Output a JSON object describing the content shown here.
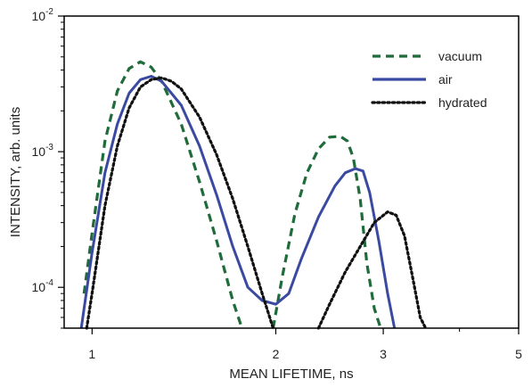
{
  "chart_data": {
    "type": "line",
    "title": "",
    "xlabel": "MEAN LIFETIME, ns",
    "ylabel": "INTENSITY, arb. units",
    "x_scale": "log",
    "y_scale": "log",
    "xlim": [
      0.9,
      5
    ],
    "ylim": [
      5e-05,
      0.01
    ],
    "x_ticks": [
      {
        "value": 1,
        "label": "1"
      },
      {
        "value": 2,
        "label": "2"
      },
      {
        "value": 3,
        "label": "3"
      },
      {
        "value": 5,
        "label": "5"
      }
    ],
    "y_ticks": [
      {
        "value": 0.0001,
        "base": "10",
        "exp": "-4"
      },
      {
        "value": 0.001,
        "base": "10",
        "exp": "-3"
      },
      {
        "value": 0.01,
        "base": "10",
        "exp": "-2"
      }
    ],
    "grid": false,
    "legend_position": "top-right",
    "series": [
      {
        "name": "vacuum",
        "color": "#1f6b3a",
        "style": "dashed",
        "x": [
          0.97,
          1.0,
          1.05,
          1.1,
          1.15,
          1.2,
          1.25,
          1.3,
          1.4,
          1.5,
          1.6,
          1.7,
          1.76,
          null,
          1.98,
          2.05,
          2.15,
          2.25,
          2.35,
          2.45,
          2.55,
          2.62,
          2.68,
          2.75,
          2.82,
          2.9,
          2.97
        ],
        "y": [
          9e-05,
          0.00025,
          0.0012,
          0.0028,
          0.0041,
          0.0046,
          0.0042,
          0.0033,
          0.0016,
          0.0006,
          0.00022,
          8e-05,
          5e-05,
          null,
          5e-05,
          0.00012,
          0.00035,
          0.0007,
          0.00105,
          0.00128,
          0.0013,
          0.0012,
          0.0009,
          0.00045,
          0.00015,
          7e-05,
          5e-05
        ]
      },
      {
        "name": "air",
        "color": "#3a4aa0",
        "style": "solid",
        "x": [
          0.96,
          1.0,
          1.05,
          1.1,
          1.15,
          1.2,
          1.25,
          1.3,
          1.4,
          1.5,
          1.6,
          1.7,
          1.8,
          1.9,
          2.0,
          2.1,
          2.2,
          2.35,
          2.5,
          2.6,
          2.7,
          2.78,
          2.85,
          2.95,
          3.05,
          3.13
        ],
        "y": [
          5e-05,
          0.00018,
          0.0007,
          0.0016,
          0.0027,
          0.0034,
          0.0036,
          0.0033,
          0.0022,
          0.0011,
          0.00048,
          0.0002,
          0.0001,
          8e-05,
          7.5e-05,
          9e-05,
          0.00016,
          0.00033,
          0.00056,
          0.0007,
          0.00075,
          0.00072,
          0.0005,
          0.00022,
          9e-05,
          5e-05
        ]
      },
      {
        "name": "hydrated",
        "color": "#111111",
        "style": "dotted",
        "x": [
          0.98,
          1.0,
          1.05,
          1.1,
          1.15,
          1.2,
          1.25,
          1.3,
          1.35,
          1.4,
          1.5,
          1.6,
          1.7,
          1.8,
          1.9,
          1.98,
          null,
          2.35,
          2.45,
          2.6,
          2.75,
          2.9,
          3.05,
          3.15,
          3.25,
          3.35,
          3.45,
          3.52
        ],
        "y": [
          5e-05,
          9e-05,
          0.0004,
          0.0011,
          0.0021,
          0.003,
          0.0034,
          0.0035,
          0.0033,
          0.0029,
          0.0018,
          0.00095,
          0.00045,
          0.0002,
          9e-05,
          5e-05,
          null,
          5e-05,
          7.5e-05,
          0.00013,
          0.0002,
          0.0003,
          0.00036,
          0.00034,
          0.00024,
          0.00012,
          6e-05,
          5e-05
        ]
      }
    ]
  }
}
